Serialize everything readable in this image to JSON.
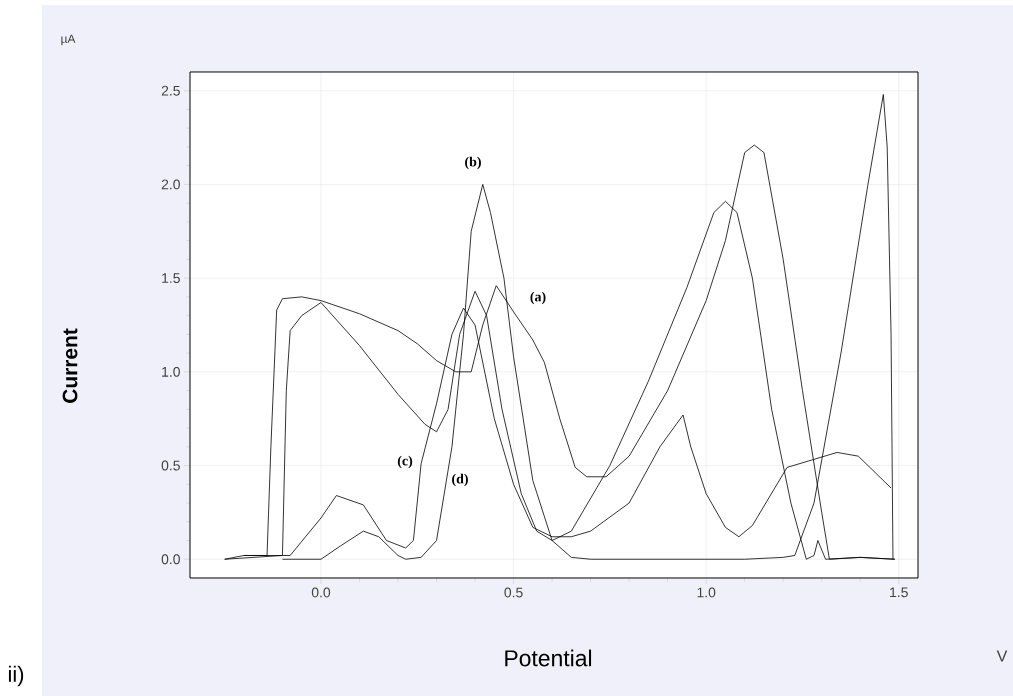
{
  "chart_data": {
    "type": "line",
    "xlabel": "Potential",
    "ylabel": "Current",
    "xlim": [
      -0.34,
      1.55
    ],
    "ylim": [
      -0.1,
      2.6
    ],
    "xticks": [
      {
        "value": 0,
        "label": "0.0"
      },
      {
        "value": 0.5,
        "label": "0.5"
      },
      {
        "value": 1,
        "label": "1.0"
      },
      {
        "value": 1.5,
        "label": "1.5"
      }
    ],
    "yticks": [
      {
        "value": 0,
        "label": "0.0"
      },
      {
        "value": 0.5,
        "label": "0.5"
      },
      {
        "value": 1,
        "label": "1.0"
      },
      {
        "value": 1.5,
        "label": "1.5"
      },
      {
        "value": 2,
        "label": "2.0"
      },
      {
        "value": 2.5,
        "label": "2.5"
      }
    ],
    "grid": true,
    "marker": "none",
    "line_style": "solid",
    "series": [
      {
        "color": "#000000",
        "x": [
          -0.25,
          -0.2,
          -0.14,
          -0.13,
          -0.115,
          -0.1,
          -0.05,
          0.0,
          0.1,
          0.2,
          0.25,
          0.3,
          0.35,
          0.39,
          0.42,
          0.455,
          0.5,
          0.55,
          0.58,
          0.62,
          0.66,
          0.69,
          0.74,
          0.8,
          0.9,
          1.0,
          1.05,
          1.1,
          1.125,
          1.15,
          1.2,
          1.25,
          1.3,
          1.32,
          1.4,
          1.49
        ],
        "values": [
          0.0,
          0.02,
          0.02,
          0.6,
          1.33,
          1.39,
          1.4,
          1.38,
          1.31,
          1.22,
          1.15,
          1.06,
          1.0,
          1.0,
          1.25,
          1.46,
          1.32,
          1.17,
          1.05,
          0.75,
          0.49,
          0.44,
          0.44,
          0.55,
          0.9,
          1.38,
          1.7,
          2.17,
          2.21,
          2.17,
          1.6,
          0.9,
          0.25,
          0.0,
          0.01,
          0.0
        ]
      },
      {
        "color": "#000000",
        "x": [
          -0.1,
          0.0,
          0.05,
          0.11,
          0.15,
          0.2,
          0.22,
          0.26,
          0.3,
          0.34,
          0.37,
          0.39,
          0.42,
          0.44,
          0.475,
          0.5,
          0.55,
          0.6,
          0.65,
          0.7,
          0.8,
          0.9,
          1.0,
          1.1,
          1.2,
          1.23,
          1.28,
          1.35,
          1.42,
          1.46,
          1.47,
          1.48,
          1.485
        ],
        "values": [
          0.0,
          0.0,
          0.07,
          0.15,
          0.12,
          0.02,
          0.0,
          0.01,
          0.1,
          0.6,
          1.2,
          1.75,
          2.0,
          1.85,
          1.5,
          1.08,
          0.42,
          0.1,
          0.01,
          0.0,
          0.0,
          0.0,
          0.0,
          0.0,
          0.01,
          0.02,
          0.3,
          1.1,
          2.0,
          2.48,
          2.2,
          1.2,
          0.0
        ]
      },
      {
        "color": "#000000",
        "x": [
          -0.25,
          -0.1,
          -0.08,
          0.0,
          0.04,
          0.11,
          0.17,
          0.22,
          0.24,
          0.26,
          0.3,
          0.34,
          0.37,
          0.4,
          0.45,
          0.5,
          0.55,
          0.6,
          0.65,
          0.7,
          0.8,
          0.88,
          0.94,
          0.96,
          1.0,
          1.05,
          1.085,
          1.12,
          1.21,
          1.34,
          1.395,
          1.48
        ],
        "values": [
          0.0,
          0.02,
          0.02,
          0.22,
          0.34,
          0.29,
          0.1,
          0.06,
          0.1,
          0.51,
          0.83,
          1.2,
          1.34,
          1.25,
          0.75,
          0.4,
          0.17,
          0.12,
          0.12,
          0.15,
          0.3,
          0.6,
          0.77,
          0.6,
          0.35,
          0.17,
          0.12,
          0.18,
          0.49,
          0.57,
          0.55,
          0.38
        ]
      },
      {
        "color": "#000000",
        "x": [
          -0.2,
          -0.1,
          -0.09,
          -0.08,
          -0.05,
          0.0,
          0.1,
          0.2,
          0.27,
          0.3,
          0.33,
          0.36,
          0.4,
          0.43,
          0.47,
          0.52,
          0.56,
          0.6,
          0.65,
          0.75,
          0.85,
          0.95,
          1.02,
          1.05,
          1.08,
          1.12,
          1.17,
          1.22,
          1.26,
          1.28,
          1.29,
          1.31,
          1.4,
          1.49
        ],
        "values": [
          0.02,
          0.02,
          0.9,
          1.22,
          1.3,
          1.37,
          1.14,
          0.88,
          0.72,
          0.68,
          0.8,
          1.2,
          1.43,
          1.3,
          0.8,
          0.35,
          0.15,
          0.1,
          0.15,
          0.5,
          0.95,
          1.45,
          1.85,
          1.91,
          1.85,
          1.5,
          0.8,
          0.3,
          0.0,
          0.02,
          0.1,
          0.0,
          0.01,
          0.0
        ]
      }
    ],
    "annotations": [
      "(a)",
      "(b)",
      "(c)",
      "(d)",
      "µA",
      "V",
      "ii)"
    ]
  }
}
